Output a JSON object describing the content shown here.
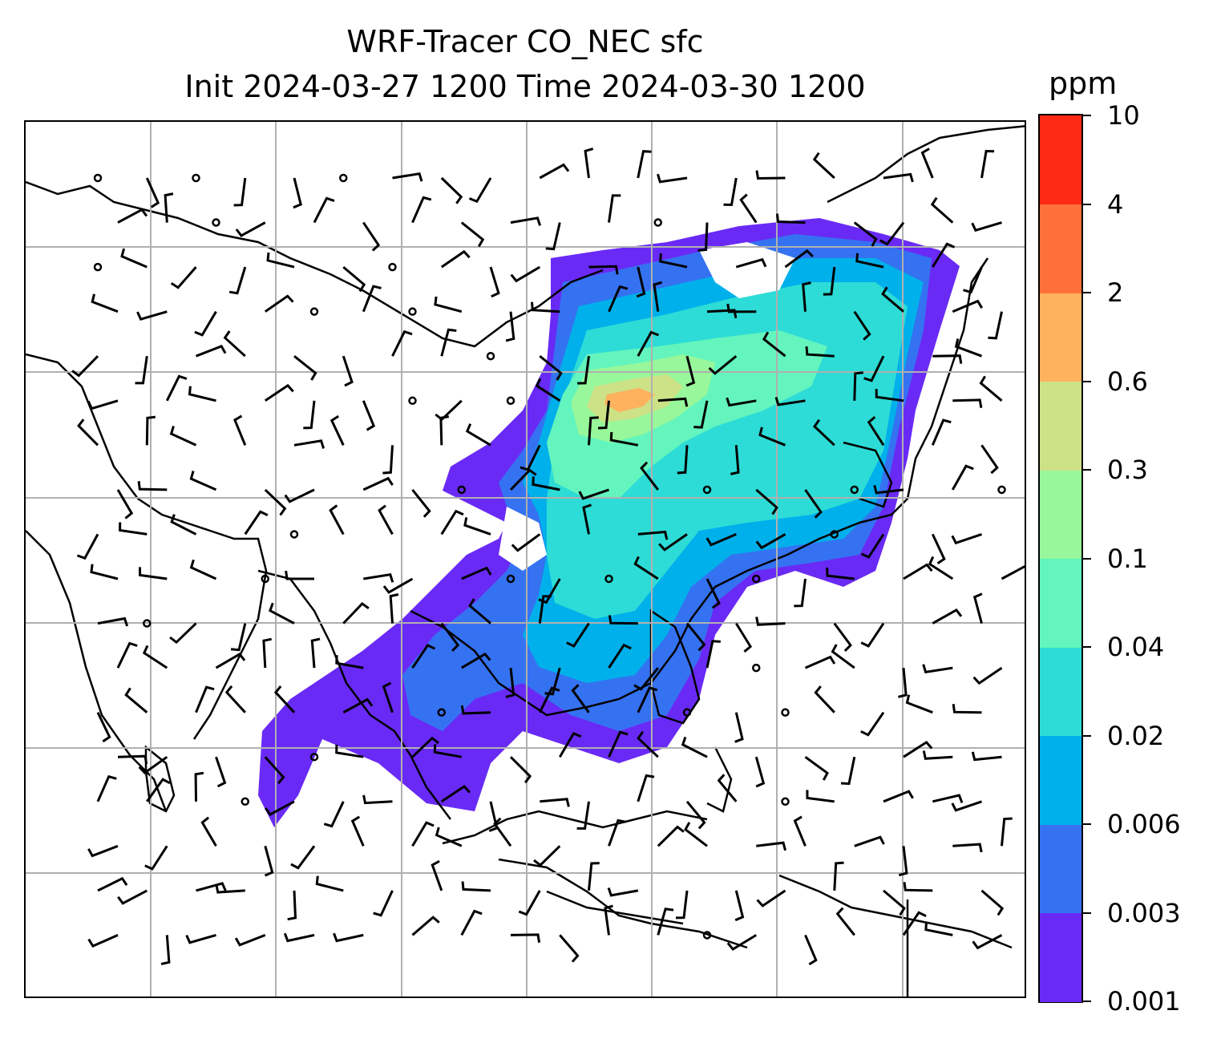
{
  "title": {
    "line1": "WRF-Tracer CO_NEC sfc",
    "line2": "Init 2024-03-27 1200 Time 2024-03-30 1200"
  },
  "colorbar": {
    "unit": "ppm",
    "levels": [
      "0.001",
      "0.003",
      "0.006",
      "0.02",
      "0.04",
      "0.1",
      "0.3",
      "0.6",
      "2",
      "4",
      "10"
    ],
    "colors": [
      "#6a2af5",
      "#3572f2",
      "#00b0ea",
      "#2ddcd6",
      "#63f5bd",
      "#97f79a",
      "#cde187",
      "#feb25d",
      "#ff6f3a",
      "#ff2a15"
    ]
  },
  "map": {
    "variable": "CO_NEC",
    "level": "sfc",
    "gridlines": true,
    "wind_barbs": true
  }
}
